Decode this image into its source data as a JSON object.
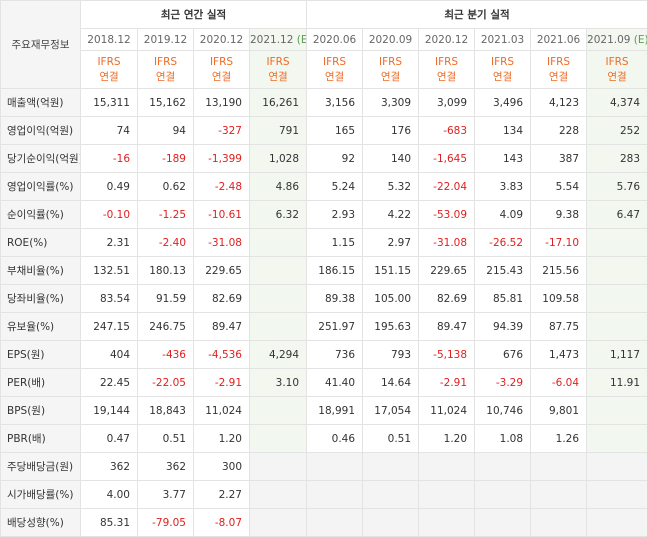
{
  "table": {
    "header": "주요재무정보",
    "groups": [
      {
        "title": "최근 연간 실적",
        "columns": [
          {
            "period": "2018.12",
            "basis": [
              "IFRS",
              "연결"
            ]
          },
          {
            "period": "2019.12",
            "basis": [
              "IFRS",
              "연결"
            ]
          },
          {
            "period": "2020.12",
            "basis": [
              "IFRS",
              "연결"
            ]
          },
          {
            "period": "2021.12",
            "mark": "(E)",
            "basis": [
              "IFRS",
              "연결"
            ]
          }
        ]
      },
      {
        "title": "최근 분기 실적",
        "columns": [
          {
            "period": "2020.06",
            "basis": [
              "IFRS",
              "연결"
            ]
          },
          {
            "period": "2020.09",
            "basis": [
              "IFRS",
              "연결"
            ]
          },
          {
            "period": "2020.12",
            "basis": [
              "IFRS",
              "연결"
            ]
          },
          {
            "period": "2021.03",
            "basis": [
              "IFRS",
              "연결"
            ]
          },
          {
            "period": "2021.06",
            "basis": [
              "IFRS",
              "연결"
            ]
          },
          {
            "period": "2021.09",
            "mark": "(E)",
            "basis": [
              "IFRS",
              "연결"
            ]
          }
        ]
      }
    ],
    "sections": [
      [
        {
          "label": "매출액(억원)",
          "values": [
            "15,311",
            "15,162",
            "13,190",
            "16,261",
            "3,156",
            "3,309",
            "3,099",
            "3,496",
            "4,123",
            "4,374"
          ]
        },
        {
          "label": "영업이익(억원)",
          "values": [
            "74",
            "94",
            "-327",
            "791",
            "165",
            "176",
            "-683",
            "134",
            "228",
            "252"
          ]
        },
        {
          "label": "당기순이익(억원)",
          "values": [
            "-16",
            "-189",
            "-1,399",
            "1,028",
            "92",
            "140",
            "-1,645",
            "143",
            "387",
            "283"
          ]
        }
      ],
      [
        {
          "label": "영업이익률(%)",
          "values": [
            "0.49",
            "0.62",
            "-2.48",
            "4.86",
            "5.24",
            "5.32",
            "-22.04",
            "3.83",
            "5.54",
            "5.76"
          ]
        },
        {
          "label": "순이익률(%)",
          "values": [
            "-0.10",
            "-1.25",
            "-10.61",
            "6.32",
            "2.93",
            "4.22",
            "-53.09",
            "4.09",
            "9.38",
            "6.47"
          ]
        },
        {
          "label": "ROE(%)",
          "values": [
            "2.31",
            "-2.40",
            "-31.08",
            null,
            "1.15",
            "2.97",
            "-31.08",
            "-26.52",
            "-17.10",
            null
          ]
        }
      ],
      [
        {
          "label": "부채비율(%)",
          "values": [
            "132.51",
            "180.13",
            "229.65",
            null,
            "186.15",
            "151.15",
            "229.65",
            "215.43",
            "215.56",
            null
          ]
        },
        {
          "label": "당좌비율(%)",
          "values": [
            "83.54",
            "91.59",
            "82.69",
            null,
            "89.38",
            "105.00",
            "82.69",
            "85.81",
            "109.58",
            null
          ]
        },
        {
          "label": "유보율(%)",
          "values": [
            "247.15",
            "246.75",
            "89.47",
            null,
            "251.97",
            "195.63",
            "89.47",
            "94.39",
            "87.75",
            null
          ]
        }
      ],
      [
        {
          "label": "EPS(원)",
          "values": [
            "404",
            "-436",
            "-4,536",
            "4,294",
            "736",
            "793",
            "-5,138",
            "676",
            "1,473",
            "1,117"
          ]
        },
        {
          "label": "PER(배)",
          "values": [
            "22.45",
            "-22.05",
            "-2.91",
            "3.10",
            "41.40",
            "14.64",
            "-2.91",
            "-3.29",
            "-6.04",
            "11.91"
          ]
        },
        {
          "label": "BPS(원)",
          "values": [
            "19,144",
            "18,843",
            "11,024",
            null,
            "18,991",
            "17,054",
            "11,024",
            "10,746",
            "9,801",
            null
          ]
        },
        {
          "label": "PBR(배)",
          "values": [
            "0.47",
            "0.51",
            "1.20",
            null,
            "0.46",
            "0.51",
            "1.20",
            "1.08",
            "1.26",
            null
          ]
        }
      ],
      [
        {
          "label": "주당배당금(원)",
          "values": [
            "362",
            "362",
            "300",
            null,
            null,
            null,
            null,
            null,
            null,
            null
          ]
        },
        {
          "label": "시가배당률(%)",
          "values": [
            "4.00",
            "3.77",
            "2.27",
            null,
            null,
            null,
            null,
            null,
            null,
            null
          ]
        },
        {
          "label": "배당성향(%)",
          "values": [
            "85.31",
            "-79.05",
            "-8.07",
            null,
            null,
            null,
            null,
            null,
            null,
            null
          ]
        }
      ]
    ]
  }
}
